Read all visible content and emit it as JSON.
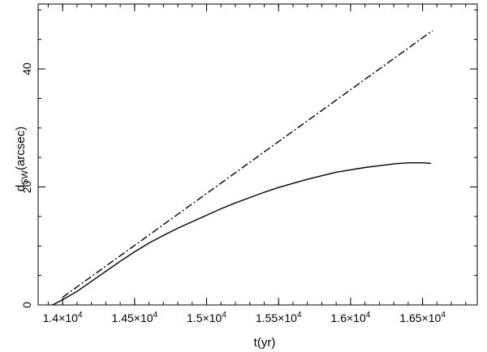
{
  "chart_data": {
    "type": "line",
    "xlabel": "t(yr)",
    "ylabel_main": "d",
    "ylabel_sub": "SW",
    "ylabel_rest": "(arcsec)",
    "xlim": [
      13830,
      16880
    ],
    "ylim": [
      0,
      51
    ],
    "x_ticks": [
      {
        "value": 14000,
        "mantissa": "1.4×10",
        "exp": "4"
      },
      {
        "value": 14500,
        "mantissa": "1.45×10",
        "exp": "4"
      },
      {
        "value": 15000,
        "mantissa": "1.5×10",
        "exp": "4"
      },
      {
        "value": 15500,
        "mantissa": "1.55×10",
        "exp": "4"
      },
      {
        "value": 16000,
        "mantissa": "1.6×10",
        "exp": "4"
      },
      {
        "value": 16500,
        "mantissa": "1.65×10",
        "exp": "4"
      }
    ],
    "x_minor_step": 100,
    "y_ticks": [
      {
        "value": 0,
        "label": "0"
      },
      {
        "value": 20,
        "label": "20"
      },
      {
        "value": 40,
        "label": "40"
      }
    ],
    "y_minor_step": 5,
    "series": [
      {
        "style": "solid",
        "x": [
          13930,
          14000,
          14100,
          14200,
          14300,
          14400,
          14500,
          14600,
          14700,
          14800,
          14900,
          15000,
          15100,
          15200,
          15300,
          15400,
          15500,
          15600,
          15700,
          15800,
          15900,
          16000,
          16100,
          16200,
          16300,
          16400,
          16450,
          16500,
          16560
        ],
        "y": [
          0,
          0.9,
          2.3,
          4.0,
          5.7,
          7.4,
          9.0,
          10.5,
          11.8,
          13.0,
          14.1,
          15.2,
          16.3,
          17.3,
          18.2,
          19.1,
          19.9,
          20.6,
          21.3,
          21.9,
          22.5,
          22.9,
          23.3,
          23.6,
          23.9,
          24.1,
          24.1,
          24.1,
          24.0
        ]
      },
      {
        "style": "dashdot",
        "x": [
          14000,
          16570
        ],
        "y": [
          1.3,
          46.5
        ]
      }
    ]
  }
}
